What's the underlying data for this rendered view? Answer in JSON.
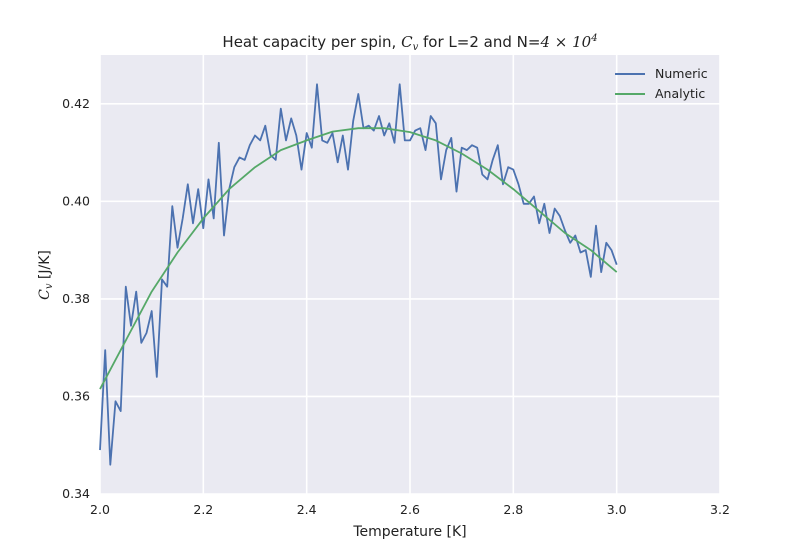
{
  "chart_data": {
    "type": "line",
    "title_parts": {
      "prefix": "Heat capacity per spin, ",
      "symbol": "C",
      "symbol_sub": "v",
      "mid": " for L=2 and N=",
      "n_base": "4 × 10",
      "n_exp": "4"
    },
    "xlabel": "Temperature [K]",
    "ylabel_parts": {
      "symbol": "C",
      "symbol_sub": "v",
      "unit": " [J/K]"
    },
    "xlim": [
      2.0,
      3.2
    ],
    "ylim": [
      0.34,
      0.43
    ],
    "x_ticks": [
      "2.0",
      "2.2",
      "2.4",
      "2.6",
      "2.8",
      "3.0",
      "3.2"
    ],
    "x_tick_values": [
      2.0,
      2.2,
      2.4,
      2.6,
      2.8,
      3.0,
      3.2
    ],
    "y_ticks": [
      "0.34",
      "0.36",
      "0.38",
      "0.40",
      "0.42"
    ],
    "y_tick_values": [
      0.34,
      0.36,
      0.38,
      0.4,
      0.42
    ],
    "grid": true,
    "legend_position": "top-right",
    "series": [
      {
        "name": "Numeric",
        "color": "#4c72b0",
        "x": [
          2.0,
          2.01,
          2.02,
          2.03,
          2.04,
          2.05,
          2.06,
          2.07,
          2.08,
          2.09,
          2.1,
          2.11,
          2.12,
          2.13,
          2.14,
          2.15,
          2.16,
          2.17,
          2.18,
          2.19,
          2.2,
          2.21,
          2.22,
          2.23,
          2.24,
          2.25,
          2.26,
          2.27,
          2.28,
          2.29,
          2.3,
          2.31,
          2.32,
          2.33,
          2.34,
          2.35,
          2.36,
          2.37,
          2.38,
          2.39,
          2.4,
          2.41,
          2.42,
          2.43,
          2.44,
          2.45,
          2.46,
          2.47,
          2.48,
          2.49,
          2.5,
          2.51,
          2.52,
          2.53,
          2.54,
          2.55,
          2.56,
          2.57,
          2.58,
          2.59,
          2.6,
          2.61,
          2.62,
          2.63,
          2.64,
          2.65,
          2.66,
          2.67,
          2.68,
          2.69,
          2.7,
          2.71,
          2.72,
          2.73,
          2.74,
          2.75,
          2.76,
          2.77,
          2.78,
          2.79,
          2.8,
          2.81,
          2.82,
          2.83,
          2.84,
          2.85,
          2.86,
          2.87,
          2.88,
          2.89,
          2.9,
          2.91,
          2.92,
          2.93,
          2.94,
          2.95,
          2.96,
          2.97,
          2.98,
          2.99,
          3.0
        ],
        "y": [
          0.349,
          0.3695,
          0.346,
          0.359,
          0.357,
          0.3825,
          0.3745,
          0.3815,
          0.371,
          0.373,
          0.3775,
          0.364,
          0.384,
          0.3825,
          0.399,
          0.3905,
          0.3965,
          0.4035,
          0.3955,
          0.4025,
          0.3945,
          0.4045,
          0.3965,
          0.412,
          0.393,
          0.4025,
          0.407,
          0.409,
          0.4085,
          0.4115,
          0.4135,
          0.4125,
          0.4155,
          0.4095,
          0.4085,
          0.419,
          0.4125,
          0.417,
          0.4135,
          0.4065,
          0.414,
          0.411,
          0.424,
          0.4125,
          0.412,
          0.414,
          0.408,
          0.4135,
          0.4065,
          0.4165,
          0.422,
          0.415,
          0.4155,
          0.4145,
          0.4175,
          0.4135,
          0.416,
          0.412,
          0.424,
          0.4125,
          0.4125,
          0.4145,
          0.415,
          0.4105,
          0.4175,
          0.416,
          0.4045,
          0.4105,
          0.413,
          0.402,
          0.411,
          0.4105,
          0.4115,
          0.411,
          0.4055,
          0.4045,
          0.4085,
          0.4115,
          0.4035,
          0.407,
          0.4065,
          0.4035,
          0.3995,
          0.3995,
          0.401,
          0.3955,
          0.3995,
          0.3935,
          0.3985,
          0.397,
          0.394,
          0.3915,
          0.393,
          0.3895,
          0.39,
          0.3845,
          0.395,
          0.3855,
          0.3915,
          0.39,
          0.387
        ]
      },
      {
        "name": "Analytic",
        "color": "#55a868",
        "x": [
          2.0,
          2.05,
          2.1,
          2.15,
          2.2,
          2.25,
          2.3,
          2.35,
          2.4,
          2.45,
          2.5,
          2.55,
          2.6,
          2.65,
          2.7,
          2.75,
          2.8,
          2.85,
          2.9,
          2.95,
          3.0
        ],
        "y": [
          0.3615,
          0.3715,
          0.3815,
          0.3895,
          0.3965,
          0.4025,
          0.407,
          0.4105,
          0.4125,
          0.4143,
          0.415,
          0.415,
          0.4142,
          0.4125,
          0.4098,
          0.4065,
          0.4025,
          0.398,
          0.3935,
          0.39,
          0.3855
        ]
      }
    ]
  }
}
